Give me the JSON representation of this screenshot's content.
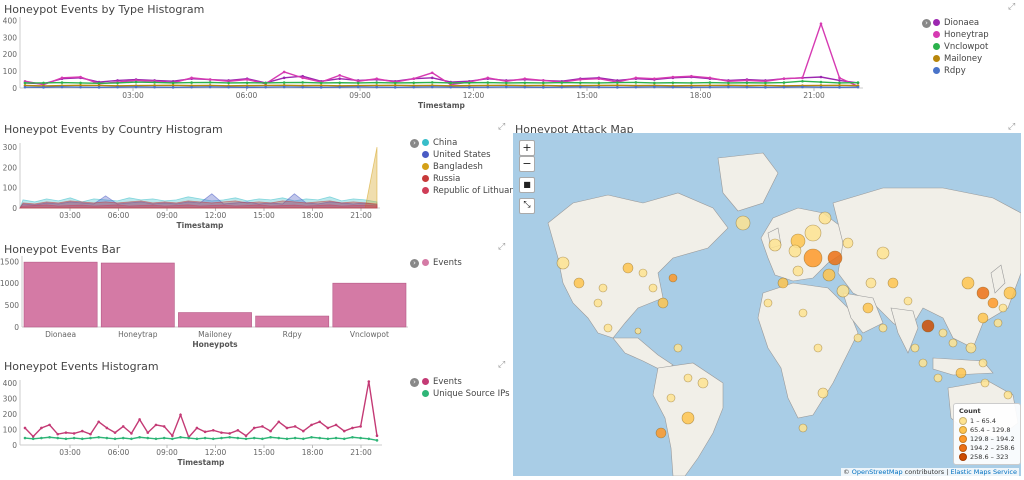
{
  "panels": {
    "type_histogram": {
      "title": "Honeypot Events by Type Histogram",
      "xlabel": "Timestamp"
    },
    "country_histogram": {
      "title": "Honeypot Events by Country Histogram",
      "xlabel": "Timestamp"
    },
    "events_bar": {
      "title": "Honeypot Events Bar",
      "xlabel": "Honeypots"
    },
    "events_histogram": {
      "title": "Honeypot Events Histogram",
      "xlabel": "Timestamp"
    },
    "attack_map": {
      "title": "Honeypot Attack Map",
      "zoom_in": "+",
      "zoom_out": "−",
      "legend_title": "Count",
      "legend": [
        {
          "label": "1 – 65.4",
          "color": "#fee391"
        },
        {
          "label": "65.4 – 129.8",
          "color": "#fec44f"
        },
        {
          "label": "129.8 – 194.2",
          "color": "#fe9929"
        },
        {
          "label": "194.2 – 258.6",
          "color": "#ec7014"
        },
        {
          "label": "258.6 – 323",
          "color": "#cc4c02"
        }
      ],
      "attribution": {
        "prefix": "© ",
        "osm": "OpenStreetMap",
        "contrib": " contributors | ",
        "ems": "Elastic Maps Service"
      }
    }
  },
  "chart_data": [
    {
      "type": "line",
      "title": "Honeypot Events by Type Histogram",
      "xlabel": "Timestamp",
      "x_ticks": [
        "03:00",
        "06:00",
        "09:00",
        "12:00",
        "15:00",
        "18:00",
        "21:00"
      ],
      "y_ticks": [
        "0",
        "100",
        "200",
        "300",
        "400"
      ],
      "ylim": [
        0,
        420
      ],
      "series": [
        {
          "name": "Dionaea",
          "color": "#9c27b0",
          "values": [
            30,
            25,
            55,
            60,
            35,
            45,
            50,
            45,
            40,
            55,
            50,
            45,
            55,
            30,
            60,
            70,
            40,
            55,
            45,
            50,
            40,
            55,
            60,
            35,
            40,
            55,
            45,
            50,
            45,
            40,
            55,
            60,
            45,
            55,
            50,
            60,
            65,
            55,
            45,
            50,
            45,
            55,
            60,
            65,
            45,
            30
          ]
        },
        {
          "name": "Honeytrap",
          "color": "#d63ab2",
          "values": [
            40,
            20,
            60,
            65,
            25,
            35,
            45,
            40,
            30,
            60,
            50,
            40,
            50,
            25,
            95,
            60,
            35,
            75,
            40,
            55,
            35,
            55,
            90,
            20,
            35,
            60,
            40,
            55,
            45,
            35,
            50,
            55,
            35,
            60,
            55,
            65,
            70,
            60,
            40,
            45,
            40,
            55,
            60,
            380,
            60,
            10
          ]
        },
        {
          "name": "Vnclowpot",
          "color": "#2bb24c",
          "values": [
            30,
            30,
            32,
            30,
            28,
            30,
            35,
            33,
            30,
            32,
            33,
            30,
            31,
            30,
            32,
            33,
            30,
            31,
            30,
            32,
            30,
            31,
            33,
            30,
            31,
            32,
            30,
            31,
            30,
            32,
            31,
            30,
            32,
            33,
            30,
            31,
            30,
            32,
            30,
            31,
            30,
            32,
            40,
            35,
            30,
            32
          ]
        },
        {
          "name": "Mailoney",
          "color": "#b8860b",
          "values": [
            15,
            12,
            14,
            16,
            15,
            13,
            14,
            15,
            16,
            14,
            15,
            13,
            14,
            15,
            16,
            14,
            15,
            13,
            14,
            15,
            16,
            14,
            15,
            13,
            14,
            15,
            16,
            14,
            15,
            13,
            14,
            15,
            16,
            14,
            15,
            13,
            14,
            15,
            16,
            14,
            15,
            13,
            14,
            15,
            16,
            14
          ]
        },
        {
          "name": "Rdpy",
          "color": "#4a74c9",
          "values": [
            5,
            4,
            6,
            5,
            4,
            5,
            6,
            5,
            4,
            5,
            6,
            5,
            4,
            5,
            6,
            5,
            4,
            5,
            6,
            5,
            4,
            5,
            6,
            5,
            4,
            5,
            6,
            5,
            4,
            5,
            6,
            5,
            4,
            5,
            6,
            5,
            4,
            5,
            6,
            5,
            4,
            5,
            6,
            5,
            4,
            5
          ]
        }
      ]
    },
    {
      "type": "area",
      "title": "Honeypot Events by Country Histogram",
      "xlabel": "Timestamp",
      "x_ticks": [
        "03:00",
        "06:00",
        "09:00",
        "12:00",
        "15:00",
        "18:00",
        "21:00"
      ],
      "y_ticks": [
        "0",
        "100",
        "200",
        "300"
      ],
      "ylim": [
        0,
        320
      ],
      "series": [
        {
          "name": "China",
          "color": "#38bdc9",
          "values": [
            40,
            30,
            45,
            35,
            50,
            30,
            45,
            40,
            35,
            50,
            40,
            45,
            35,
            40,
            55,
            45,
            35,
            40,
            50,
            35,
            45,
            40,
            50,
            35,
            45,
            40,
            55,
            35,
            45,
            40,
            30
          ]
        },
        {
          "name": "United States",
          "color": "#4a5bc4",
          "values": [
            20,
            15,
            25,
            20,
            30,
            25,
            20,
            60,
            20,
            25,
            30,
            20,
            25,
            20,
            30,
            25,
            70,
            20,
            25,
            30,
            20,
            25,
            20,
            70,
            25,
            20,
            30,
            25,
            20,
            25,
            15
          ]
        },
        {
          "name": "Bangladesh",
          "color": "#d4a017",
          "values": [
            0,
            0,
            0,
            0,
            0,
            0,
            0,
            0,
            0,
            0,
            0,
            0,
            0,
            0,
            0,
            0,
            0,
            0,
            0,
            0,
            0,
            0,
            0,
            0,
            0,
            0,
            0,
            0,
            0,
            0,
            300
          ]
        },
        {
          "name": "Russia",
          "color": "#c73a3a",
          "values": [
            25,
            20,
            30,
            25,
            35,
            30,
            25,
            30,
            25,
            30,
            35,
            25,
            30,
            25,
            35,
            30,
            25,
            30,
            35,
            25,
            30,
            25,
            35,
            30,
            25,
            30,
            35,
            25,
            30,
            25,
            20
          ]
        },
        {
          "name": "Republic of Lithuania",
          "color": "#cf3d57",
          "values": [
            10,
            12,
            15,
            10,
            12,
            14,
            10,
            12,
            15,
            10,
            12,
            14,
            10,
            12,
            15,
            10,
            12,
            14,
            10,
            12,
            15,
            10,
            12,
            14,
            10,
            12,
            15,
            10,
            12,
            14,
            10
          ]
        }
      ]
    },
    {
      "type": "bar",
      "title": "Honeypot Events Bar",
      "xlabel": "Honeypots",
      "categories": [
        "Dionaea",
        "Honeytrap",
        "Mailoney",
        "Rdpy",
        "Vnclowpot"
      ],
      "y_ticks": [
        "0",
        "500",
        "1000",
        "1500"
      ],
      "ylim": [
        0,
        1620
      ],
      "series": [
        {
          "name": "Events",
          "color": "#d47aa5",
          "values": [
            1480,
            1460,
            330,
            250,
            1000
          ]
        }
      ]
    },
    {
      "type": "line",
      "title": "Honeypot Events Histogram",
      "xlabel": "Timestamp",
      "x_ticks": [
        "03:00",
        "06:00",
        "09:00",
        "12:00",
        "15:00",
        "18:00",
        "21:00"
      ],
      "y_ticks": [
        "0",
        "100",
        "200",
        "300",
        "400"
      ],
      "ylim": [
        0,
        420
      ],
      "series": [
        {
          "name": "Events",
          "color": "#c43a75",
          "values": [
            110,
            55,
            110,
            130,
            70,
            80,
            75,
            90,
            70,
            150,
            110,
            80,
            120,
            75,
            165,
            80,
            130,
            120,
            60,
            195,
            50,
            110,
            85,
            95,
            80,
            75,
            95,
            60,
            110,
            120,
            90,
            150,
            110,
            120,
            90,
            130,
            150,
            110,
            130,
            90,
            110,
            120,
            410,
            60
          ]
        },
        {
          "name": "Unique Source IPs",
          "color": "#2fb577",
          "values": [
            45,
            40,
            45,
            50,
            45,
            40,
            45,
            40,
            45,
            50,
            45,
            40,
            45,
            40,
            50,
            45,
            40,
            45,
            40,
            50,
            45,
            40,
            45,
            40,
            45,
            50,
            45,
            40,
            45,
            40,
            50,
            45,
            40,
            45,
            40,
            50,
            45,
            40,
            45,
            40,
            50,
            45,
            40,
            30
          ]
        }
      ]
    }
  ]
}
